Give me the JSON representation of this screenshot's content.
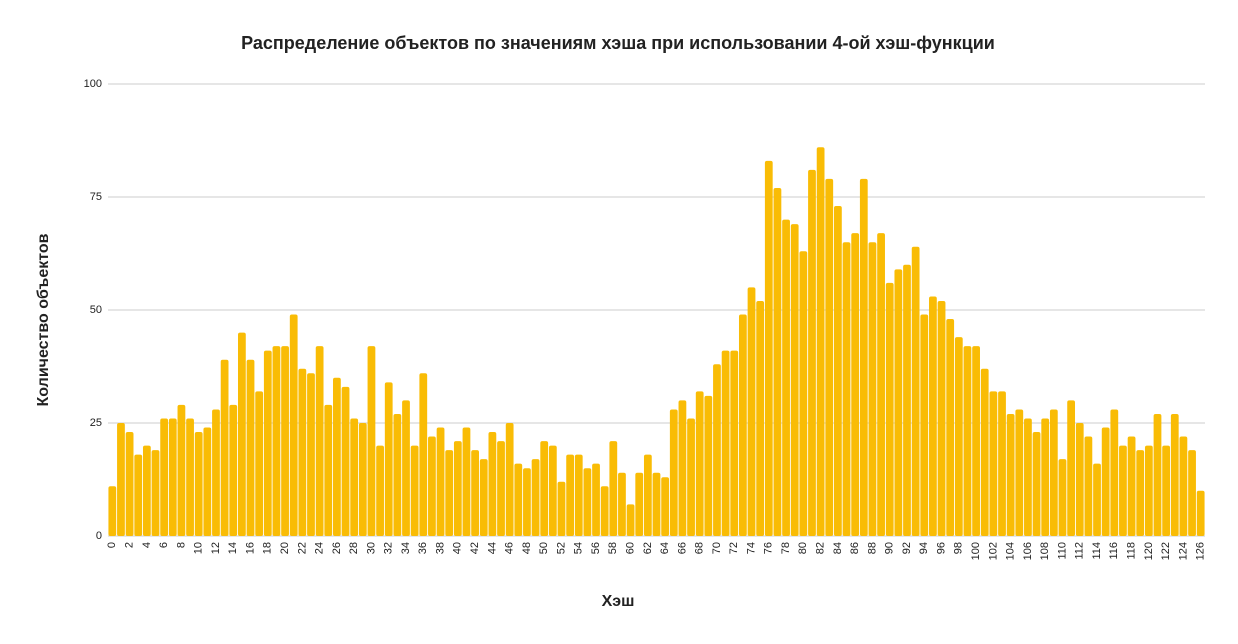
{
  "chart_data": {
    "type": "bar",
    "title": "Распределение объектов по значениям хэша при использовании 4-ой хэш-функции",
    "x_label": "Хэш",
    "y_label": "Количество объектов",
    "categories": [
      "0",
      null,
      "2",
      null,
      "4",
      null,
      "6",
      null,
      "8",
      null,
      "10",
      null,
      "12",
      null,
      "14",
      null,
      "16",
      null,
      "18",
      null,
      "20",
      null,
      "22",
      null,
      "24",
      null,
      "26",
      null,
      "28",
      null,
      "30",
      null,
      "32",
      null,
      "34",
      null,
      "36",
      null,
      "38",
      null,
      "40",
      null,
      "42",
      null,
      "44",
      null,
      "46",
      null,
      "48",
      null,
      "50",
      null,
      "52",
      null,
      "54",
      null,
      "56",
      null,
      "58",
      null,
      "60",
      null,
      "62",
      null,
      "64",
      null,
      "66",
      null,
      "68",
      null,
      "70",
      null,
      "72",
      null,
      "74",
      null,
      "76",
      null,
      "78",
      null,
      "80",
      null,
      "82",
      null,
      "84",
      null,
      "86",
      null,
      "88",
      null,
      "90",
      null,
      "92",
      null,
      "94",
      null,
      "96",
      null,
      "98",
      null,
      "100",
      null,
      "102",
      null,
      "104",
      null,
      "106",
      null,
      "108",
      null,
      "110",
      null,
      "112",
      null,
      "114",
      null,
      "116",
      null,
      "118",
      null,
      "120",
      null,
      "122",
      null,
      "124",
      null,
      "126"
    ],
    "values": [
      11,
      25,
      23,
      18,
      20,
      19,
      26,
      26,
      29,
      26,
      23,
      24,
      28,
      39,
      29,
      45,
      39,
      32,
      41,
      42,
      42,
      49,
      37,
      36,
      42,
      29,
      35,
      33,
      26,
      25,
      42,
      20,
      34,
      27,
      30,
      20,
      36,
      22,
      24,
      19,
      21,
      24,
      19,
      17,
      23,
      21,
      25,
      16,
      15,
      17,
      21,
      20,
      12,
      18,
      18,
      15,
      16,
      11,
      21,
      14,
      7,
      14,
      18,
      14,
      13,
      28,
      30,
      26,
      32,
      31,
      38,
      41,
      41,
      49,
      55,
      52,
      83,
      77,
      70,
      69,
      63,
      81,
      86,
      79,
      73,
      65,
      67,
      79,
      65,
      67,
      56,
      59,
      60,
      64,
      49,
      53,
      52,
      48,
      44,
      42,
      42,
      37,
      32,
      32,
      27,
      28,
      26,
      23,
      26,
      28,
      17,
      30,
      25,
      22,
      16,
      24,
      28,
      20,
      22,
      19,
      20,
      27,
      20,
      27,
      22,
      19,
      10
    ],
    "color": "#f9bc05",
    "ylim": [
      0,
      100
    ],
    "yticks": [
      0,
      25,
      50,
      75,
      100
    ],
    "grid": true
  }
}
